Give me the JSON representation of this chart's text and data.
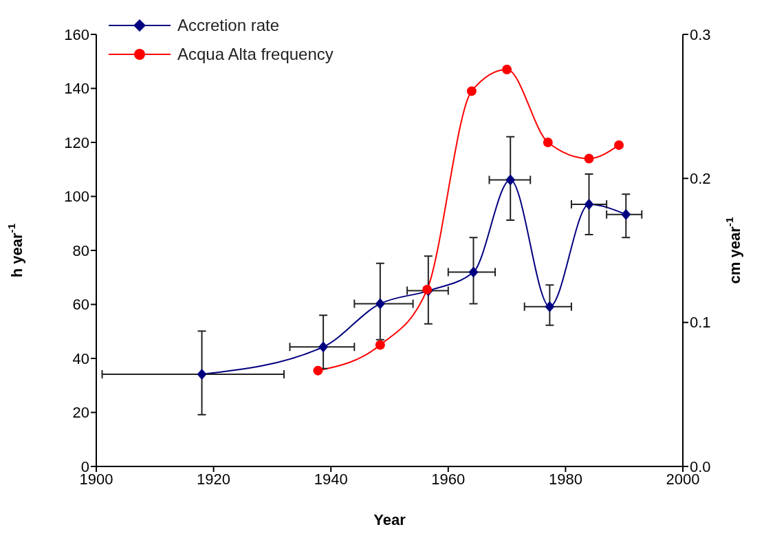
{
  "chart_data": {
    "type": "line",
    "xlabel": "Year",
    "ylabel": "h year$^{-1}$",
    "y2label": "cm year$^{-1}$",
    "xlim": [
      1900,
      2000
    ],
    "xticks": [
      1900,
      1920,
      1940,
      1960,
      1980,
      2000
    ],
    "ylim": [
      0,
      160
    ],
    "yticks": [
      0,
      20,
      40,
      60,
      80,
      100,
      120,
      140,
      160
    ],
    "y2lim": [
      0,
      0.3
    ],
    "y2ticks": [
      {
        "value": 0,
        "label": "0.0"
      },
      0.1,
      0.2,
      0.3
    ],
    "legend": "top left",
    "grid": false,
    "series": [
      {
        "name": "Accretion rate",
        "color": "#000080",
        "marker": "diamond",
        "axis": "y2",
        "x": [
          1918,
          1938.7,
          1948.4,
          1956.6,
          1964.3,
          1970.6,
          1977.3,
          1984,
          1990.3
        ],
        "values": [
          0.064,
          0.083,
          0.113,
          0.122,
          0.135,
          0.199,
          0.111,
          0.182,
          0.175
        ],
        "errors": [
          [
            0.036,
            0.094
          ],
          [
            0.068,
            0.105
          ],
          [
            0.088,
            0.141
          ],
          [
            0.099,
            0.146
          ],
          [
            0.113,
            0.159
          ],
          [
            0.171,
            0.229
          ],
          [
            0.098,
            0.126
          ],
          [
            0.161,
            0.203
          ],
          [
            0.159,
            0.189
          ]
        ],
        "xerrors": [
          [
            1901,
            1932
          ],
          [
            1933,
            1944
          ],
          [
            1944,
            1954
          ],
          [
            1953,
            1960
          ],
          [
            1960,
            1968
          ],
          [
            1967,
            1974
          ],
          [
            1973,
            1981
          ],
          [
            1981,
            1987
          ],
          [
            1987,
            1993
          ]
        ]
      },
      {
        "name": "Acqua Alta frequency",
        "color": "#ff0000",
        "marker": "circle",
        "x": [
          1937.8,
          1948.4,
          1956.4,
          1964,
          1970,
          1977,
          1984,
          1989.1
        ],
        "values": [
          35.5,
          45,
          65.5,
          139,
          147,
          120,
          114,
          119
        ]
      }
    ]
  }
}
